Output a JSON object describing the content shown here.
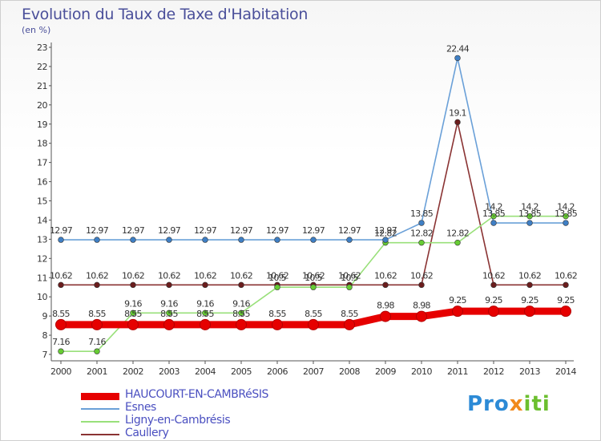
{
  "chart_data": {
    "type": "line",
    "title": "Evolution du Taux de Taxe d'Habitation",
    "subtitle": "(en %)",
    "xlabel": "",
    "ylabel": "",
    "ylim": [
      7,
      23
    ],
    "yticks": [
      7,
      8,
      9,
      10,
      11,
      12,
      13,
      14,
      15,
      16,
      17,
      18,
      19,
      20,
      21,
      22,
      23
    ],
    "grid": false,
    "categories": [
      "2000",
      "2001",
      "2002",
      "2003",
      "2004",
      "2005",
      "2006",
      "2007",
      "2008",
      "2009",
      "2010",
      "2011",
      "2012",
      "2013",
      "2014"
    ],
    "series": [
      {
        "name": "HAUCOURT-EN-CAMBRéSIS",
        "color": "#e60000",
        "marker": "#e60000",
        "values": [
          8.55,
          8.55,
          8.55,
          8.55,
          8.55,
          8.55,
          8.55,
          8.55,
          8.55,
          8.98,
          8.98,
          9.25,
          9.25,
          9.25,
          9.25
        ],
        "labels": [
          "8.55",
          "8.55",
          "8.55",
          "8.55",
          "8.55",
          "8.55",
          "8.55",
          "8.55",
          "8.55",
          "8.98",
          "8.98",
          "9.25",
          "9.25",
          "9.25",
          "9.25"
        ]
      },
      {
        "name": "Esnes",
        "color": "#6aa0d8",
        "marker": "#3f7fc4",
        "values": [
          12.97,
          12.97,
          12.97,
          12.97,
          12.97,
          12.97,
          12.97,
          12.97,
          12.97,
          12.97,
          13.85,
          22.44,
          13.85,
          13.85,
          13.85
        ],
        "labels": [
          "12.97",
          "12.97",
          "12.97",
          "12.97",
          "12.97",
          "12.97",
          "12.97",
          "12.97",
          "12.97",
          "12.97",
          "13.85",
          "22.44",
          "13.85",
          "13.85",
          "13.85"
        ]
      },
      {
        "name": "Ligny-en-Cambrésis",
        "color": "#99e07a",
        "marker": "#66cc33",
        "values": [
          7.16,
          7.16,
          9.16,
          9.16,
          9.16,
          9.16,
          10.5,
          10.5,
          10.5,
          12.82,
          12.82,
          12.82,
          14.2,
          14.2,
          14.2
        ],
        "labels": [
          "7.16",
          "7.16",
          "9.16",
          "9.16",
          "9.16",
          "9.16",
          "10.5",
          "10.5",
          "10.5",
          "12.82",
          "12.82",
          "12.82",
          "14.2",
          "14.2",
          "14.2"
        ]
      },
      {
        "name": "Caullery",
        "color": "#8a3333",
        "marker": "#6b1d1d",
        "values": [
          10.62,
          10.62,
          10.62,
          10.62,
          10.62,
          10.62,
          10.62,
          10.62,
          10.62,
          10.62,
          10.62,
          19.1,
          10.62,
          10.62,
          10.62
        ],
        "labels": [
          "10.62",
          "10.62",
          "10.62",
          "10.62",
          "10.62",
          "10.62",
          "10.62",
          "10.62",
          "10.62",
          "10.62",
          "10.62",
          "19.1",
          "10.62",
          "10.62",
          "10.62"
        ]
      }
    ]
  },
  "legend": {
    "items": [
      "HAUCOURT-EN-CAMBRéSIS",
      "Esnes",
      "Ligny-en-Cambrésis",
      "Caullery"
    ]
  },
  "brand": {
    "part1": "Pro",
    "part2": "x",
    "part3": "iti"
  }
}
